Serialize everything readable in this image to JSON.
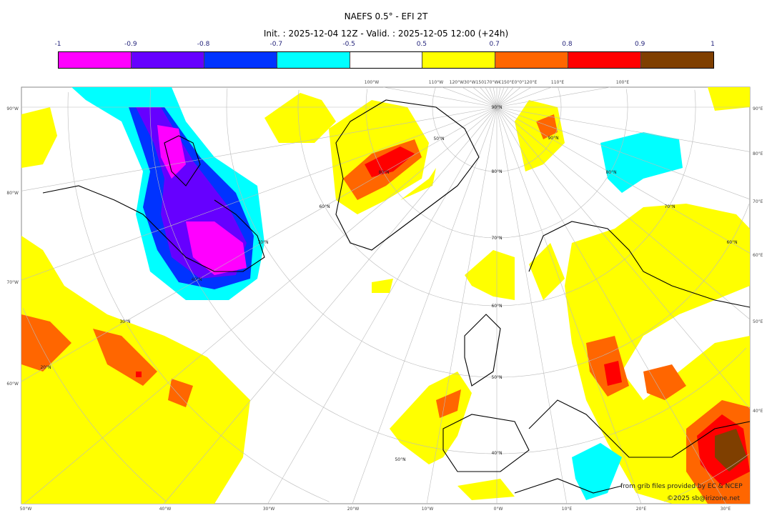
{
  "title": "NAEFS 0.5° - EFI 2T",
  "subtitle": "Init. : 2025-12-04 12Z - Valid. : 2025-12-05 12:00 (+24h)",
  "colorbar": {
    "ticks": [
      "-1",
      "-0.9",
      "-0.8",
      "-0.7",
      "-0.5",
      "0.5",
      "0.7",
      "0.8",
      "0.9",
      "1"
    ],
    "colors": [
      "#ff00ff",
      "#6600ff",
      "#0033ff",
      "#00ffff",
      "#ffffff",
      "#ffff00",
      "#ff6600",
      "#ff0000",
      "#7f3f00"
    ]
  },
  "axes": {
    "bottom": [
      "50°W",
      "40°W",
      "30°W",
      "20°W",
      "10°W",
      "0°W",
      "10°E",
      "20°E",
      "30°E"
    ],
    "left": [
      "90°W",
      "80°W",
      "70°W",
      "60°W"
    ],
    "right": [
      "90°E",
      "80°E",
      "70°E",
      "60°E",
      "50°E",
      "40°E"
    ],
    "top": [
      "100°W",
      "110°W",
      "120°W30°W150170°W€150°E0°0°120°E",
      "110°E",
      "100°E"
    ]
  },
  "lat_labels": [
    "90°N",
    "80°N",
    "70°N",
    "60°N",
    "50°N",
    "40°N",
    "30°N",
    "20°N",
    "80°N",
    "70°N",
    "60°N",
    "50°N",
    "40°N",
    "90°N",
    "80°N",
    "70°N",
    "60°N",
    "50°N"
  ],
  "credits": {
    "source": "from grib files provided by EC & NCEP",
    "copyright": "©2025 sb@irizone.net"
  }
}
